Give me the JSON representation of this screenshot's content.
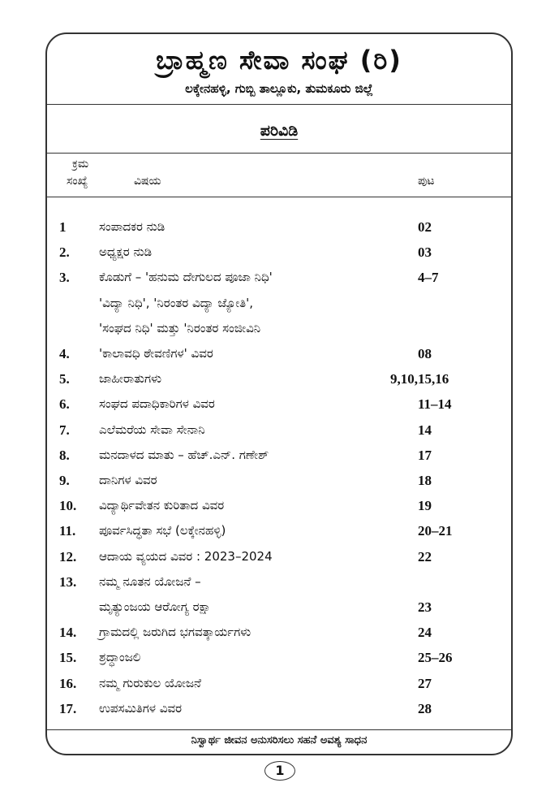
{
  "header": {
    "title": "ಬ್ರಾಹ್ಮಣ ಸೇವಾ ಸಂಘ (ರಿ)",
    "subtitle": "ಲಕ್ಕೇನಹಳ್ಳಿ, ಗುಬ್ಬಿ ತಾಲ್ಲೂಕು, ತುಮಕೂರು ಜಿಲ್ಲೆ"
  },
  "contents_heading": "ಪರಿವಿಡಿ",
  "columns": {
    "serial_line1": "ಕ್ರಮ",
    "serial_line2": "ಸಂಖ್ಯೆ",
    "subject": "ವಿಷಯ",
    "page": "ಪುಟ"
  },
  "rows": [
    {
      "num": "1",
      "subject": "ಸಂಪಾದಕರ ನುಡಿ",
      "page": "02"
    },
    {
      "num": "2.",
      "subject": "ಅಧ್ಯಕ್ಷರ ನುಡಿ",
      "page": "03"
    },
    {
      "num": "3.",
      "subject": "ಕೊಡುಗೆ – 'ಹನುಮ ದೇಗುಲದ ಪೂಜಾ ನಿಧಿ'",
      "page": "4–7"
    },
    {
      "num": "",
      "subject": "'ವಿದ್ಯಾ ನಿಧಿ', 'ನಿರಂತರ ವಿದ್ಯಾ ಜ್ಯೋತಿ',",
      "page": ""
    },
    {
      "num": "",
      "subject": "'ಸಂಘದ ನಿಧಿ' ಮತ್ತು 'ನಿರಂತರ ಸಂಜೀವಿನಿ",
      "page": ""
    },
    {
      "num": "4.",
      "subject": "'ಕಾಲಾವಧಿ ಠೇವಣಿಗಳ' ವಿವರ",
      "page": "08"
    },
    {
      "num": "5.",
      "subject": "ಜಾಹೀರಾತುಗಳು",
      "page": "9,10,15,16"
    },
    {
      "num": "6.",
      "subject": "ಸಂಘದ ಪದಾಧಿಕಾರಿಗಳ ವಿವರ",
      "page": "11–14"
    },
    {
      "num": "7.",
      "subject": "ಎಲೆಮರೆಯ ಸೇವಾ ಸೇನಾನಿ",
      "page": "14"
    },
    {
      "num": "8.",
      "subject": "ಮನದಾಳದ ಮಾತು – ಹೆಚ್.ಎನ್. ಗಣೇಶ್",
      "page": "17"
    },
    {
      "num": "9.",
      "subject": "ದಾನಿಗಳ ವಿವರ",
      "page": "18"
    },
    {
      "num": "10.",
      "subject": "ವಿದ್ಯಾರ್ಥಿವೇತನ ಕುರಿತಾದ ವಿವರ",
      "page": "19"
    },
    {
      "num": "11.",
      "subject": "ಪೂರ್ವಸಿದ್ಧತಾ ಸಭೆ (ಲಕ್ಕೇನಹಳ್ಳಿ)",
      "page": "20–21"
    },
    {
      "num": "12.",
      "subject": "ಆದಾಯ ವ್ಯಯದ ವಿವರ : 2023–2024",
      "page": "22"
    },
    {
      "num": "13.",
      "subject": "ನಮ್ಮ ನೂತನ ಯೋಜನೆ –",
      "page": ""
    },
    {
      "num": "",
      "subject": "ಮೃತ್ಯುಂಜಯ ಆರೋಗ್ಯ ರಕ್ಷಾ",
      "page": "23"
    },
    {
      "num": "14.",
      "subject": "ಗ್ರಾಮದಲ್ಲಿ ಜರುಗಿದ ಭಗವತ್ಕಾರ್ಯಗಳು",
      "page": "24"
    },
    {
      "num": "15.",
      "subject": "ಶ್ರದ್ಧಾಂಜಲಿ",
      "page": "25–26"
    },
    {
      "num": "16.",
      "subject": "ನಮ್ಮ ಗುರುಕುಲ ಯೋಜನೆ",
      "page": "27"
    },
    {
      "num": "17.",
      "subject": "ಉಪಸಮಿತಿಗಳ ವಿವರ",
      "page": "28"
    }
  ],
  "footer": {
    "motto": "ನಿಸ್ವಾರ್ಥ ಜೀವನ ಅನುಸರಿಸಲು ಸಹನೆ ಅವಶ್ಯ ಸಾಧನ",
    "page_number": "1"
  }
}
